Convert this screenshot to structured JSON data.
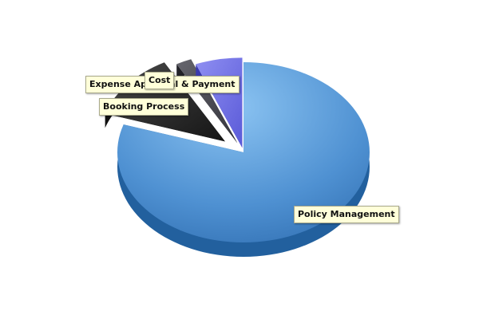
{
  "chart_data": {
    "type": "pie",
    "style": "3d-exploded",
    "legend": "none",
    "slices": [
      {
        "label": "Policy Management",
        "value": 80,
        "color": "#4a8fd3"
      },
      {
        "label": "Booking Process",
        "value": 12,
        "color": "#2a2a2a"
      },
      {
        "label": "Expense Approval & Payment",
        "value": 2,
        "color": "#4a4a52"
      },
      {
        "label": "Cost",
        "value": 6,
        "color": "#6f6fe6"
      }
    ]
  }
}
